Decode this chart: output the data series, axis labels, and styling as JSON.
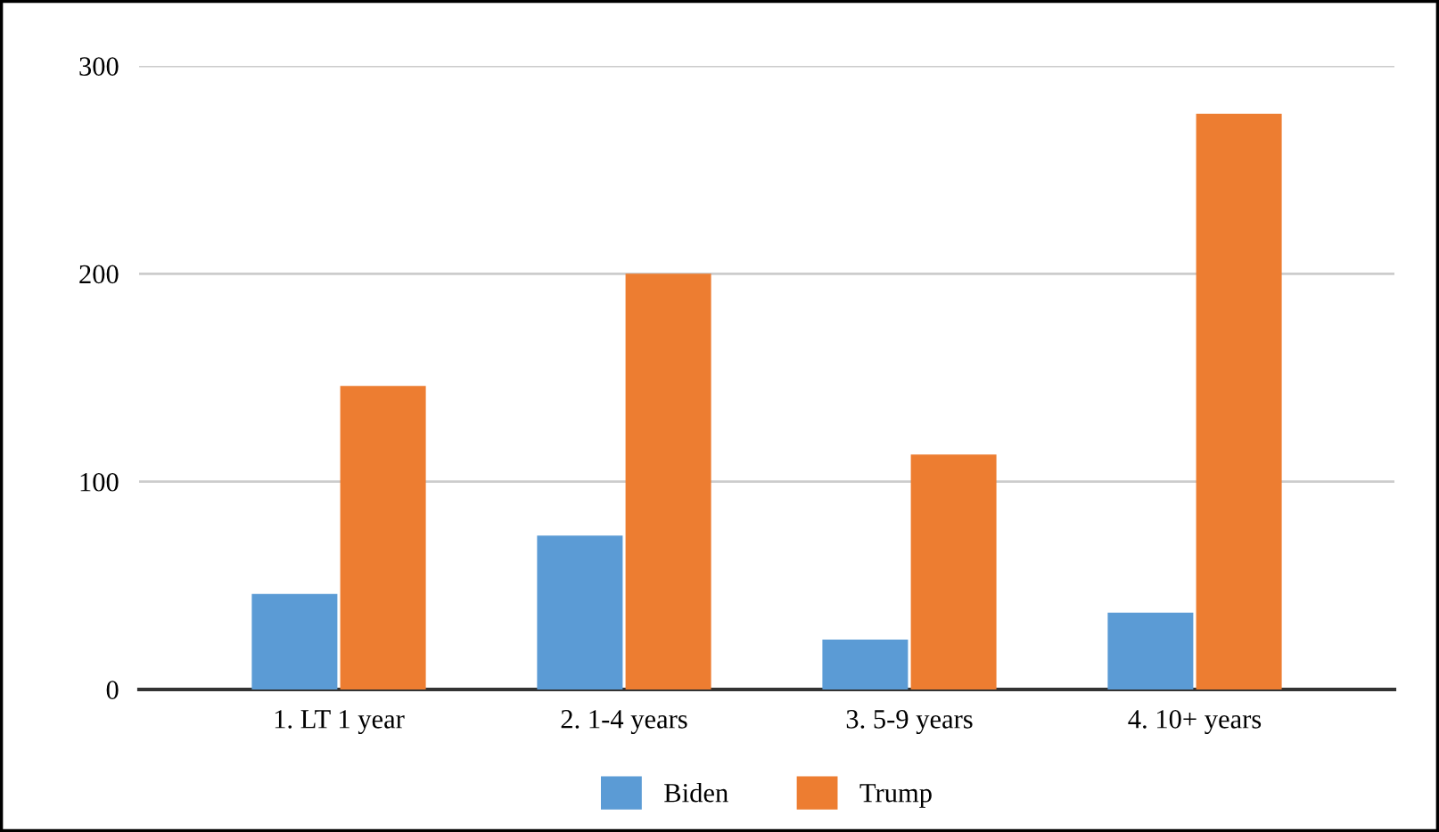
{
  "chart_data": {
    "type": "bar",
    "categories": [
      "1. LT 1 year",
      "2. 1-4 years",
      "3. 5-9 years",
      "4. 10+ years"
    ],
    "series": [
      {
        "name": "Biden",
        "color": "#5b9bd5",
        "values": [
          46,
          74,
          24,
          37
        ]
      },
      {
        "name": "Trump",
        "color": "#ed7d31",
        "values": [
          146,
          200,
          113,
          277
        ]
      }
    ],
    "ylim": [
      0,
      300
    ],
    "yticks": [
      0,
      100,
      200,
      300
    ],
    "grid": "y",
    "legend": "bottom"
  }
}
